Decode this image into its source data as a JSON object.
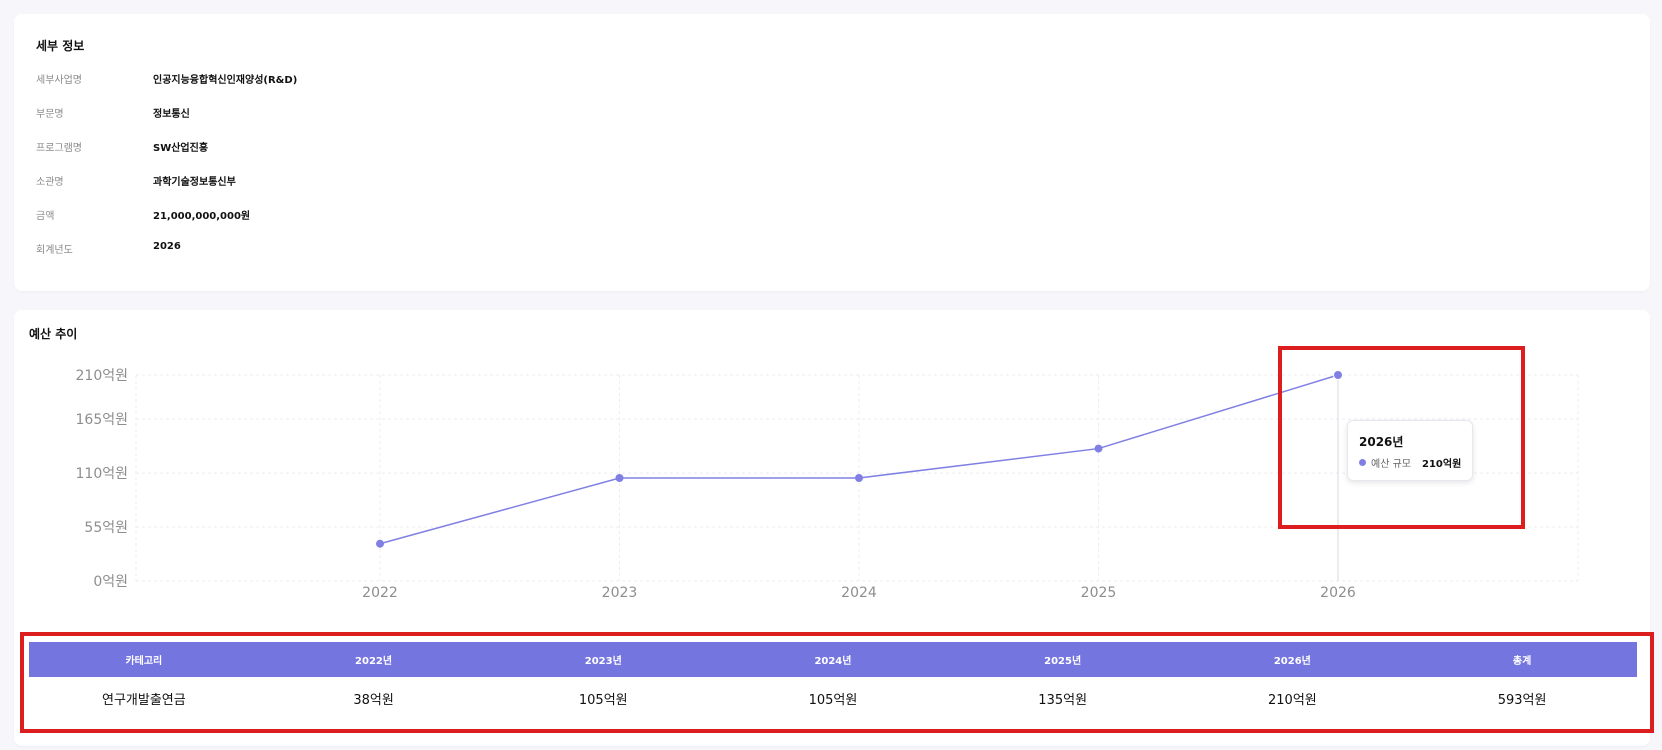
{
  "detail": {
    "title": "세부 정보",
    "rows": [
      {
        "label": "세부사업명",
        "value": "인공지능융합혁신인재양성(R&D)"
      },
      {
        "label": "부문명",
        "value": "정보통신"
      },
      {
        "label": "프로그램명",
        "value": "SW산업진흥"
      },
      {
        "label": "소관명",
        "value": "과학기술정보통신부"
      },
      {
        "label": "금액",
        "value": "21,000,000,000원"
      },
      {
        "label": "회계년도",
        "value": "2026"
      }
    ]
  },
  "chart_section": {
    "title": "예산 추이"
  },
  "chart_data": {
    "type": "line",
    "x": [
      "2022",
      "2023",
      "2024",
      "2025",
      "2026"
    ],
    "series": [
      {
        "name": "예산 규모",
        "values": [
          38,
          105,
          105,
          135,
          210
        ],
        "color": "#8080e4"
      }
    ],
    "ylim": [
      0,
      210
    ],
    "yticks": [
      0,
      55,
      110,
      165,
      210
    ],
    "ytick_labels": [
      "0억원",
      "55억원",
      "110억원",
      "165억원",
      "210억원"
    ],
    "grid": true,
    "xlabel": "",
    "ylabel": ""
  },
  "tooltip": {
    "title": "2026년",
    "series_label": "예산 규모",
    "value": "210억원",
    "dot_color": "#8080e4"
  },
  "table": {
    "headers": [
      "카테고리",
      "2022년",
      "2023년",
      "2024년",
      "2025년",
      "2026년",
      "총계"
    ],
    "rows": [
      [
        "연구개발출연금",
        "38억원",
        "105억원",
        "105억원",
        "135억원",
        "210억원",
        "593억원"
      ]
    ]
  },
  "colors": {
    "accent": "#7575e0",
    "line": "#8080e4",
    "highlight": "#dc1e1e",
    "background": "#f7f7fb"
  }
}
